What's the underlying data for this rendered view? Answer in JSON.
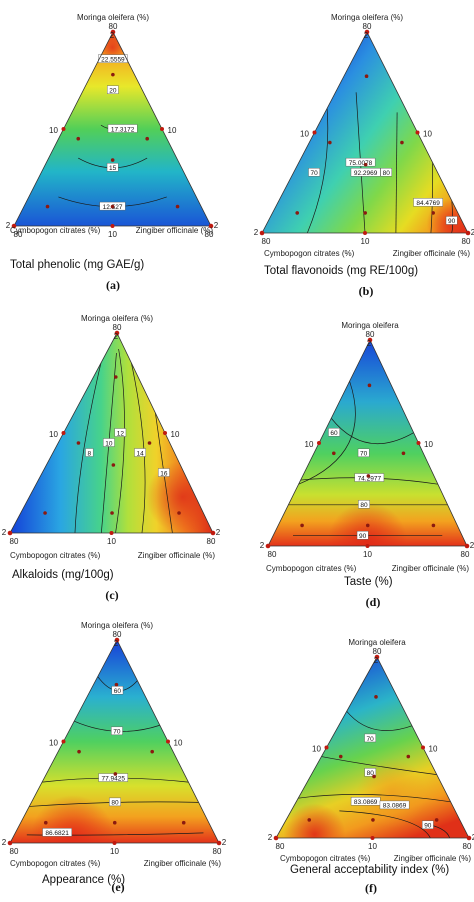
{
  "chart_data": [
    {
      "type": "heatmap",
      "panel": "(a)",
      "title": "Total phenolic  (mg GAE/g)",
      "top_label": "Moringa oleifera (%)",
      "left_label": "Cymbopogon citrates (%)",
      "right_label": "Zingiber officinale (%)",
      "vertex_labels": {
        "top": "80",
        "left": "80",
        "right": "80",
        "top_min": "2",
        "left_min": "2",
        "right_min": "2"
      },
      "mid_labels": {
        "left": "10",
        "right": "10",
        "bottom": "10"
      },
      "contour_labels": [
        "22.5559",
        "20",
        "17.3172",
        "15",
        "12.527"
      ],
      "design_points": 7
    },
    {
      "type": "heatmap",
      "panel": "(b)",
      "title": "Total flavonoids (mg RE/100g)",
      "top_label": "Moringa oleifera (%)",
      "left_label": "Cymbopogon citrates (%)",
      "right_label": "Zingiber officinale (%)",
      "vertex_labels": {
        "top": "80",
        "left": "80",
        "right": "80",
        "top_min": "2",
        "left_min": "2",
        "right_min": "2"
      },
      "mid_labels": {
        "left": "10",
        "right": "10",
        "bottom": "10"
      },
      "contour_labels": [
        "70",
        "75.0078",
        "80",
        "84.4769",
        "90",
        "92.2969"
      ],
      "design_points": 7
    },
    {
      "type": "heatmap",
      "panel": "(c)",
      "title": "Alkaloids (mg/100g)",
      "top_label": "Moringa oleifera (%)",
      "left_label": "Cymbopogon citrates (%)",
      "right_label": "Zingiber officinale (%)",
      "vertex_labels": {
        "top": "80",
        "left": "80",
        "right": "80",
        "top_min": "2",
        "left_min": "2",
        "right_min": "2"
      },
      "mid_labels": {
        "left": "10",
        "right": "10",
        "bottom": "10"
      },
      "contour_labels": [
        "8",
        "10",
        "12",
        "14",
        "16"
      ],
      "design_points": 7
    },
    {
      "type": "heatmap",
      "panel": "(d)",
      "title": "Taste (%)",
      "top_label": "Moringa oleifera",
      "left_label": "Cymbopogon citrates (%)",
      "right_label": "Zingiber officinale (%)",
      "vertex_labels": {
        "top": "80",
        "left": "80",
        "right": "80",
        "top_min": "2",
        "left_min": "2",
        "right_min": "2"
      },
      "mid_labels": {
        "left": "10",
        "right": "10",
        "bottom": "10"
      },
      "contour_labels": [
        "60",
        "70",
        "74.2977",
        "80",
        "90"
      ],
      "design_points": 7
    },
    {
      "type": "heatmap",
      "panel": "(e)",
      "title": "Appearance (%)",
      "top_label": "Moringa oleifera (%)",
      "left_label": "Cymbopogon citrates (%)",
      "right_label": "Zingiber officinale (%)",
      "vertex_labels": {
        "top": "80",
        "left": "80",
        "right": "80",
        "top_min": "2",
        "left_min": "2",
        "right_min": "2"
      },
      "mid_labels": {
        "left": "10",
        "right": "10",
        "bottom": "10"
      },
      "contour_labels": [
        "60",
        "70",
        "77.9425",
        "80",
        "86.6821"
      ],
      "design_points": 7
    },
    {
      "type": "heatmap",
      "panel": "(f)",
      "title": "General  acceptability index (%)",
      "top_label": "Moringa oleifera",
      "left_label": "Cymbopogon citrates (%)",
      "right_label": "Zingiber officinale (%)",
      "vertex_labels": {
        "top": "80",
        "left": "80",
        "right": "80",
        "top_min": "2",
        "left_min": "2",
        "right_min": "2"
      },
      "mid_labels": {
        "left": "10",
        "right": "10",
        "bottom": "10"
      },
      "contour_labels": [
        "70",
        "80",
        "83.0869",
        "83.0869",
        "90"
      ],
      "design_points": 7
    }
  ]
}
